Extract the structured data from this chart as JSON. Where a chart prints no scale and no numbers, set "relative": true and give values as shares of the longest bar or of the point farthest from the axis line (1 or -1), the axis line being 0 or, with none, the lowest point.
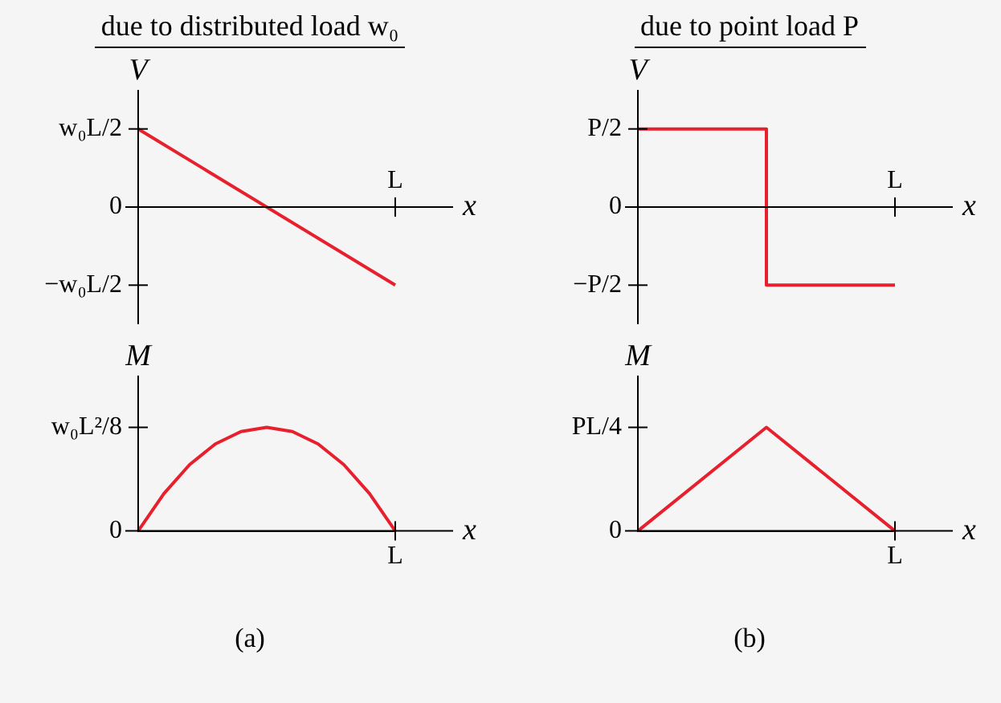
{
  "chart_data": [
    {
      "type": "line",
      "relative": true,
      "title": "due to distributed load w₀",
      "xlabel": "x",
      "ylabel": "V",
      "categories": [
        null,
        null
      ],
      "annotations": [
        {
          "text": "w₀L/2"
        },
        {
          "text": "0"
        },
        {
          "text": "−w₀L/2"
        },
        {
          "text": "L"
        }
      ],
      "series": [
        {
          "color": "#e8202e",
          "values": [
            1,
            -1
          ]
        }
      ]
    },
    {
      "type": "step",
      "relative": true,
      "title": "due to point load P",
      "xlabel": "x",
      "ylabel": "V",
      "categories": [
        null,
        null,
        null
      ],
      "annotations": [
        {
          "text": "P/2"
        },
        {
          "text": "0"
        },
        {
          "text": "−P/2"
        },
        {
          "text": "L"
        }
      ],
      "series": [
        {
          "color": "#e8202e",
          "values": [
            1,
            -1,
            -1
          ]
        }
      ]
    },
    {
      "type": "line",
      "relative": true,
      "xlabel": "x",
      "ylabel": "M",
      "categories": [
        null,
        null,
        null,
        null,
        null,
        null,
        null,
        null,
        null,
        null,
        null
      ],
      "annotations": [
        {
          "text": "w₀L²/8"
        },
        {
          "text": "0"
        },
        {
          "text": "L"
        },
        "(a)"
      ],
      "series": [
        {
          "color": "#e8202e",
          "values": [
            0,
            0.36,
            0.64,
            0.84,
            0.96,
            1,
            0.96,
            0.84,
            0.64,
            0.36,
            0
          ]
        }
      ]
    },
    {
      "type": "line",
      "relative": true,
      "xlabel": "x",
      "ylabel": "M",
      "categories": [
        null,
        null,
        null
      ],
      "annotations": [
        {
          "text": "PL/4"
        },
        {
          "text": "0"
        },
        {
          "text": "L"
        },
        "(b)"
      ],
      "series": [
        {
          "color": "#e8202e",
          "values": [
            0,
            1,
            0
          ]
        }
      ]
    }
  ]
}
